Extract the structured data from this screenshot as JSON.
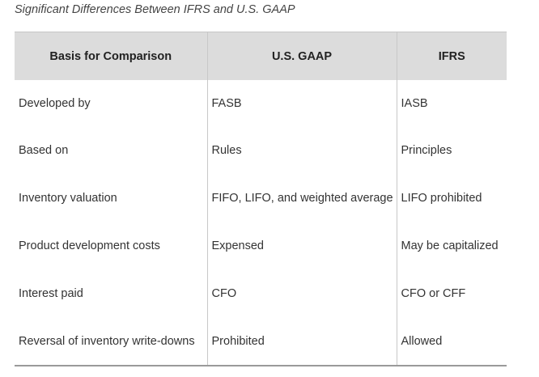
{
  "caption": "Significant Differences Between IFRS and U.S. GAAP",
  "table": {
    "headers": [
      "Basis for Comparison",
      "U.S. GAAP",
      "IFRS"
    ],
    "rows": [
      [
        "Developed by",
        "FASB",
        "IASB"
      ],
      [
        "Based on",
        "Rules",
        "Principles"
      ],
      [
        "Inventory valuation",
        "FIFO, LIFO, and weighted average",
        "LIFO prohibited"
      ],
      [
        "Product development costs",
        "Expensed",
        "May be capitalized"
      ],
      [
        "Interest paid",
        "CFO",
        "CFO or CFF"
      ],
      [
        "Reversal of inventory write-downs",
        "Prohibited",
        "Allowed"
      ]
    ]
  },
  "colors": {
    "header_background": "#dcdcdc",
    "divider": "#c8c8c8",
    "text": "#333333"
  }
}
